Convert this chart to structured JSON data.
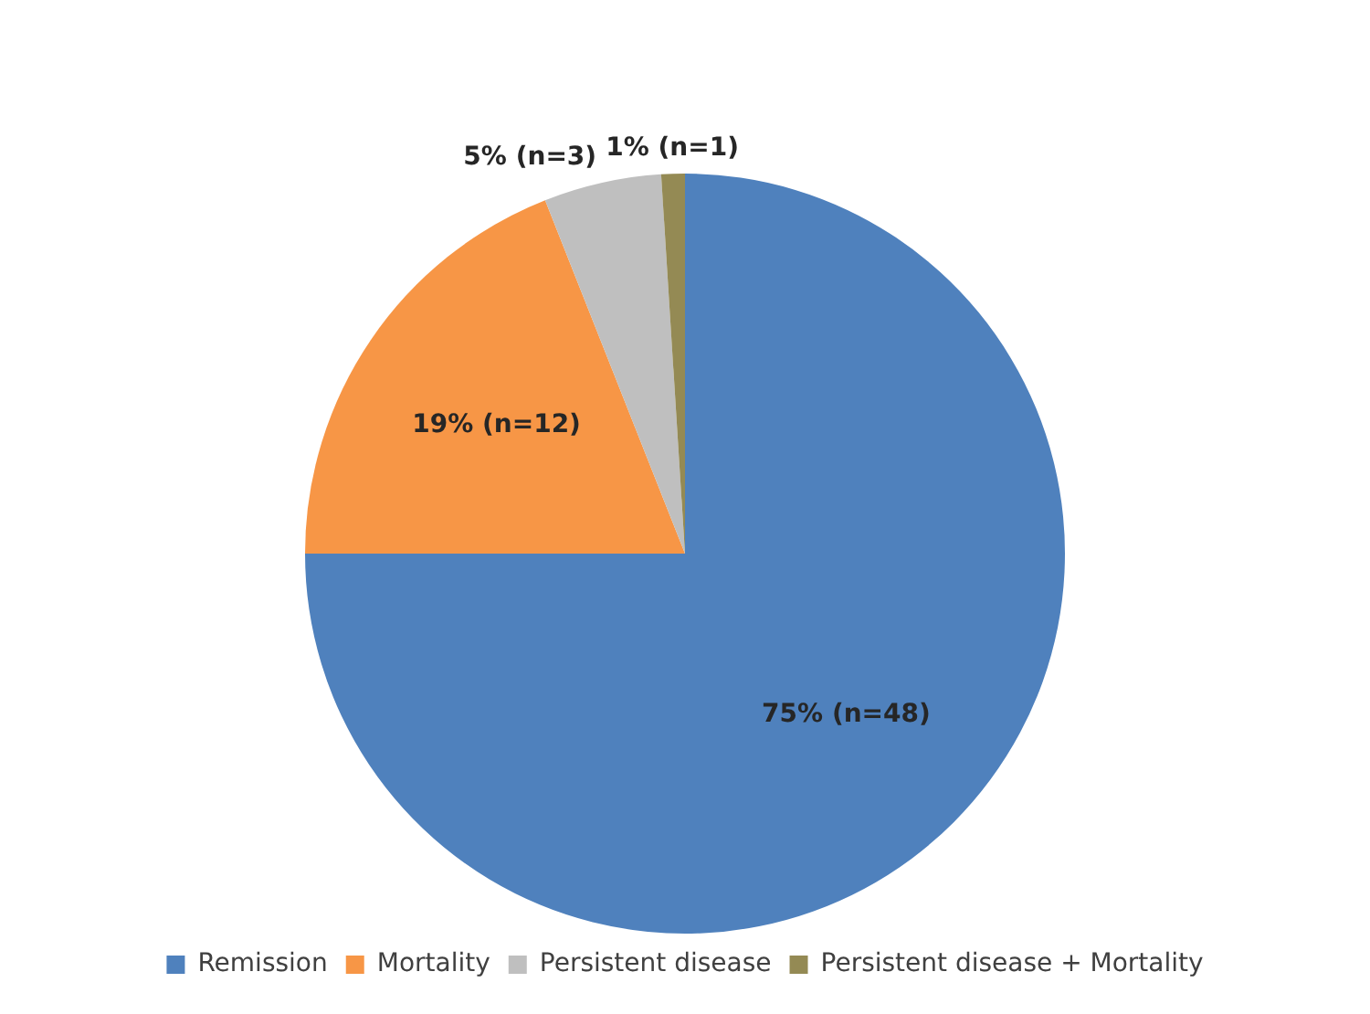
{
  "chart_data": {
    "type": "pie",
    "categories": [
      "Remission",
      "Mortality",
      "Persistent disease",
      "Persistent disease + Mortality"
    ],
    "values": [
      75,
      19,
      5,
      1
    ],
    "value_labels": [
      "75% (n=48)",
      "19% (n=12)",
      "5% (n=3)",
      "1% (n=1)"
    ],
    "colors": [
      "#4f81bd",
      "#f79646",
      "#bfbfbf",
      "#948a54"
    ],
    "legend": "bottom"
  }
}
